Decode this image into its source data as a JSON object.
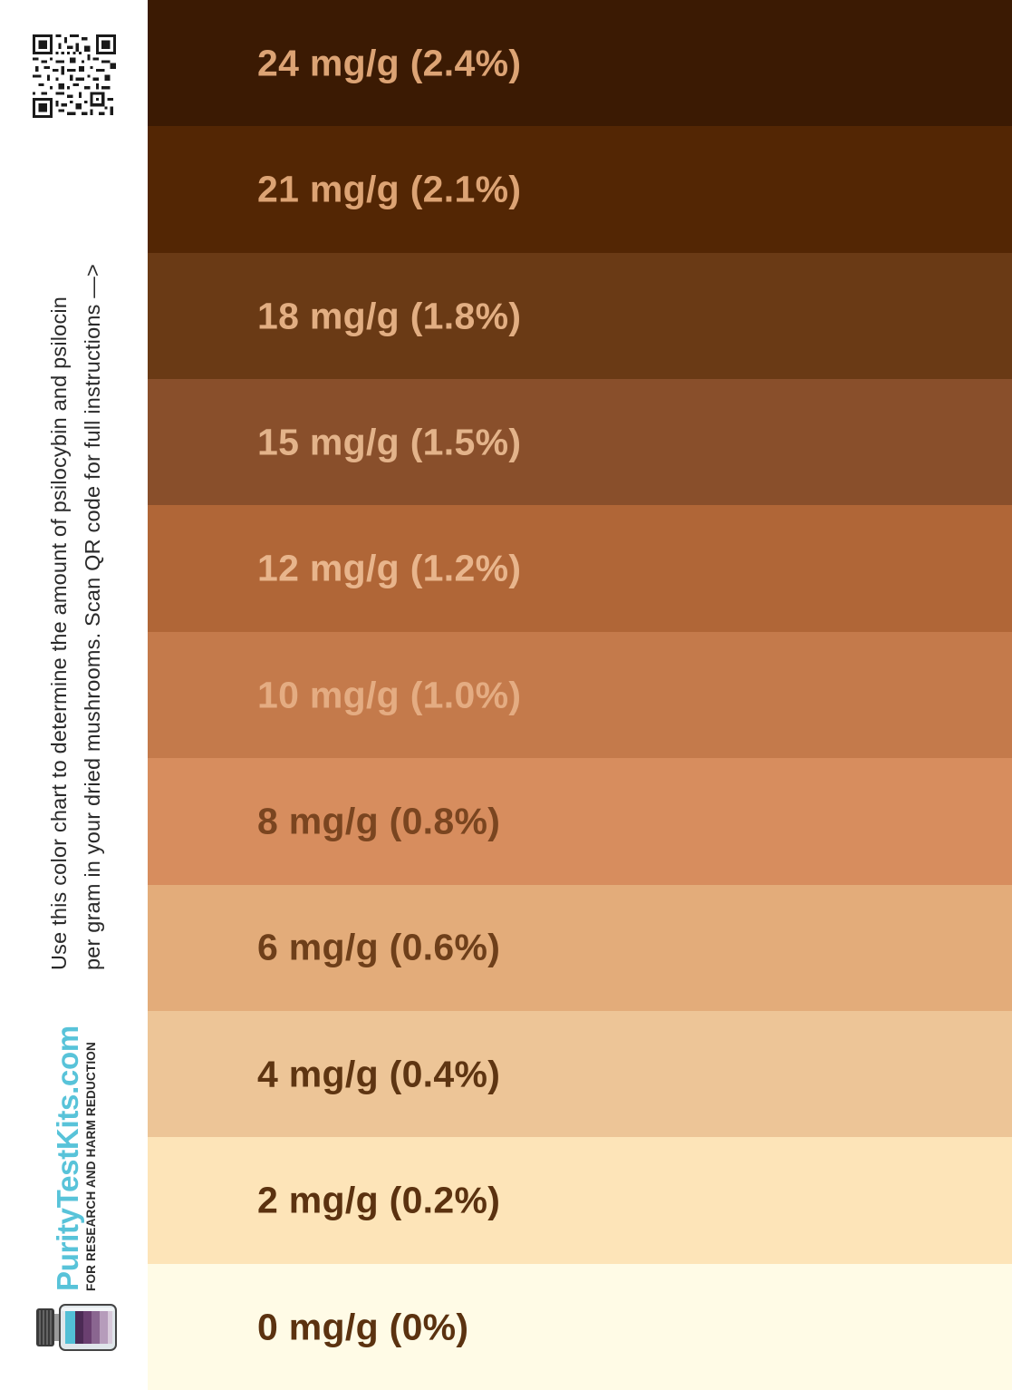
{
  "instructions": {
    "line1": "Use this color chart to determine the amount of psilocybin and psilocin",
    "line2": "per gram in your dried mushrooms. Scan QR code for full instructions —>"
  },
  "brand": {
    "name": "PurityTestKits.com",
    "tagline": "FOR RESEARCH AND HARM REDUCTION"
  },
  "colors": {
    "brand_accent": "#58c3d9"
  },
  "icons": {
    "qr": "qr-code-icon",
    "bottle": "test-kit-bottle-icon"
  },
  "chart_data": {
    "type": "table",
    "unit": "mg/g",
    "rows": [
      {
        "label": "24 mg/g (2.4%)",
        "mg_per_g": 24,
        "percent": 2.4,
        "color": "#3b1a03",
        "text_color": "#dca374"
      },
      {
        "label": "21 mg/g (2.1%)",
        "mg_per_g": 21,
        "percent": 2.1,
        "color": "#532604",
        "text_color": "#dca374"
      },
      {
        "label": "18 mg/g (1.8%)",
        "mg_per_g": 18,
        "percent": 1.8,
        "color": "#6a3a15",
        "text_color": "#e2ae82"
      },
      {
        "label": "15 mg/g (1.5%)",
        "mg_per_g": 15,
        "percent": 1.5,
        "color": "#894f2b",
        "text_color": "#e3b38a"
      },
      {
        "label": "12 mg/g (1.2%)",
        "mg_per_g": 12,
        "percent": 1.2,
        "color": "#b06637",
        "text_color": "#e8b58c"
      },
      {
        "label": "10 mg/g (1.0%)",
        "mg_per_g": 10,
        "percent": 1.0,
        "color": "#c47a4b",
        "text_color": "#e4ac82"
      },
      {
        "label": "8 mg/g (0.8%)",
        "mg_per_g": 8,
        "percent": 0.8,
        "color": "#d78d5e",
        "text_color": "#7a4520"
      },
      {
        "label": "6 mg/g (0.6%)",
        "mg_per_g": 6,
        "percent": 0.6,
        "color": "#e3ac7a",
        "text_color": "#6e3f1a"
      },
      {
        "label": "4 mg/g (0.4%)",
        "mg_per_g": 4,
        "percent": 0.4,
        "color": "#edc597",
        "text_color": "#5e3512"
      },
      {
        "label": "2 mg/g (0.2%)",
        "mg_per_g": 2,
        "percent": 0.2,
        "color": "#fde4b8",
        "text_color": "#5b3210"
      },
      {
        "label": "0 mg/g (0%)",
        "mg_per_g": 0,
        "percent": 0,
        "color": "#fffbe6",
        "text_color": "#5b3210"
      }
    ]
  }
}
